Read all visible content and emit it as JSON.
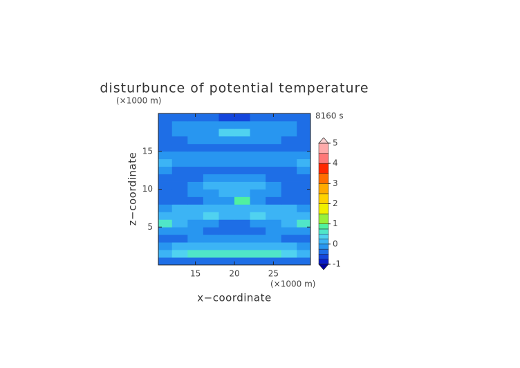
{
  "chart_data": {
    "type": "contour",
    "title": "disturbunce of potential temperature",
    "y_unit": "(×1000 m)",
    "x_unit": "(×1000 m)",
    "time_label": "8160 s",
    "xlabel": "x−coordinate",
    "ylabel": "z−coordinate",
    "xlim": [
      10.25,
      29.75
    ],
    "ylim": [
      0,
      20
    ],
    "xticks": [
      15,
      20,
      25
    ],
    "yticks": [
      5,
      10,
      15
    ],
    "x": [
      11,
      13,
      15,
      17,
      19,
      21,
      23,
      25,
      27,
      29
    ],
    "y": [
      0.5,
      1.5,
      2.5,
      3.5,
      4.5,
      5.5,
      6.5,
      7.5,
      8.5,
      9.5,
      10.5,
      11.5,
      12.5,
      13.5,
      14.5,
      15.5,
      16.5,
      17.5,
      18.5,
      19.5
    ],
    "z": [
      [
        -0.4,
        -0.4,
        -0.4,
        -0.4,
        -0.4,
        -0.4,
        -0.4,
        -0.4,
        -0.4,
        -0.4
      ],
      [
        0.1,
        0.3,
        0.55,
        0.6,
        0.6,
        0.6,
        0.6,
        0.55,
        0.3,
        0.1
      ],
      [
        -0.1,
        0.1,
        0.1,
        0.1,
        0.1,
        0.1,
        0.1,
        0.1,
        0.1,
        -0.1
      ],
      [
        -0.3,
        -0.3,
        -0.1,
        -0.1,
        -0.1,
        -0.1,
        -0.1,
        -0.1,
        -0.3,
        -0.3
      ],
      [
        -0.1,
        -0.1,
        -0.1,
        -0.3,
        -0.4,
        -0.4,
        -0.3,
        -0.1,
        -0.1,
        -0.1
      ],
      [
        0.6,
        0.1,
        -0.1,
        -0.1,
        -0.3,
        -0.3,
        -0.1,
        -0.1,
        0.1,
        0.6
      ],
      [
        0.1,
        0.1,
        0.1,
        0.3,
        0.1,
        0.1,
        0.3,
        0.1,
        0.1,
        0.1
      ],
      [
        -0.1,
        0.1,
        0.1,
        0.1,
        0.1,
        0.1,
        0.1,
        0.1,
        0.1,
        -0.1
      ],
      [
        -0.3,
        -0.3,
        -0.3,
        -0.1,
        -0.1,
        0.8,
        -0.1,
        -0.3,
        -0.3,
        -0.3
      ],
      [
        -0.3,
        -0.3,
        -0.1,
        -0.1,
        0.1,
        0.1,
        -0.1,
        -0.1,
        -0.3,
        -0.3
      ],
      [
        -0.3,
        -0.3,
        -0.1,
        0.1,
        0.1,
        0.1,
        0.1,
        -0.1,
        -0.3,
        -0.3
      ],
      [
        -0.3,
        -0.3,
        -0.3,
        -0.1,
        -0.1,
        -0.1,
        -0.1,
        -0.3,
        -0.3,
        -0.3
      ],
      [
        -0.1,
        -0.3,
        -0.3,
        -0.3,
        -0.3,
        -0.3,
        -0.3,
        -0.3,
        -0.3,
        -0.1
      ],
      [
        0.1,
        -0.1,
        -0.1,
        -0.1,
        -0.1,
        -0.1,
        -0.1,
        -0.1,
        -0.1,
        0.1
      ],
      [
        -0.1,
        -0.1,
        -0.1,
        -0.1,
        -0.1,
        -0.1,
        -0.1,
        -0.1,
        -0.1,
        -0.1
      ],
      [
        -0.3,
        -0.3,
        -0.3,
        -0.3,
        -0.3,
        -0.3,
        -0.3,
        -0.3,
        -0.3,
        -0.3
      ],
      [
        -0.3,
        -0.3,
        -0.1,
        -0.1,
        -0.1,
        -0.1,
        -0.1,
        -0.1,
        -0.3,
        -0.3
      ],
      [
        -0.3,
        -0.1,
        -0.1,
        -0.1,
        0.5,
        0.5,
        -0.1,
        -0.1,
        -0.1,
        -0.3
      ],
      [
        -0.3,
        -0.1,
        -0.1,
        -0.1,
        -0.1,
        -0.1,
        -0.1,
        -0.1,
        -0.1,
        -0.3
      ],
      [
        -0.3,
        -0.3,
        -0.3,
        -0.3,
        -0.7,
        -0.7,
        -0.3,
        -0.3,
        -0.3,
        -0.3
      ]
    ],
    "colorbar": {
      "levels": [
        -1,
        -0.75,
        -0.5,
        -0.25,
        0,
        0.25,
        0.5,
        0.75,
        1,
        1.5,
        2,
        2.5,
        3,
        3.5,
        4,
        4.5,
        5
      ],
      "colors": [
        "#0a1ec8",
        "#1446dc",
        "#1e6ee6",
        "#2896f0",
        "#3cb4f5",
        "#50d2f0",
        "#50e6c8",
        "#50f0a0",
        "#96f03c",
        "#f0f000",
        "#ffd200",
        "#ffaa00",
        "#ff6e00",
        "#ff2800",
        "#ff7878",
        "#ffaaaa"
      ],
      "under_color": "#0000a0",
      "over_color": "#ffd2d2",
      "ticks": [
        -1,
        0,
        1,
        2,
        3,
        4,
        5
      ]
    }
  }
}
